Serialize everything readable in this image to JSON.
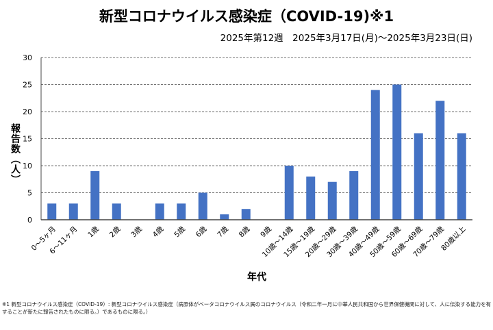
{
  "chart_data": {
    "type": "bar",
    "title": "新型コロナウイルス感染症（COVID-19)※1",
    "subtitle": "2025年第12週　2025年3月17日(月)～2025年3月23日(日)",
    "xlabel": "年代",
    "ylabel": "報告数（人）",
    "ylim": [
      0,
      30
    ],
    "yticks": [
      0,
      5,
      10,
      15,
      20,
      25,
      30
    ],
    "grid": true,
    "categories": [
      "0～5ヶ月",
      "6～11ヶ月",
      "1歳",
      "2歳",
      "3歳",
      "4歳",
      "5歳",
      "6歳",
      "7歳",
      "8歳",
      "9歳",
      "10歳～14歳",
      "15歳～19歳",
      "20歳～29歳",
      "30歳～39歳",
      "40歳～49歳",
      "50歳～59歳",
      "60歳～69歳",
      "70歳～79歳",
      "80歳以上"
    ],
    "values": [
      3,
      3,
      9,
      3,
      0,
      3,
      3,
      5,
      1,
      2,
      0,
      10,
      8,
      7,
      9,
      24,
      25,
      16,
      22,
      16
    ],
    "bar_color": "#4472C4"
  },
  "footnote": "※1 新型コロナウイルス感染症（COVID-19）: 新型コロナウイルス感染症（病原体がベータコロナウイルス属のコロナウイルス（令和二年一月に中華人民共和国から世界保健機関に対して、人に伝染する能力を有することが新たに報告されたものに限る。）であるものに限る。）"
}
